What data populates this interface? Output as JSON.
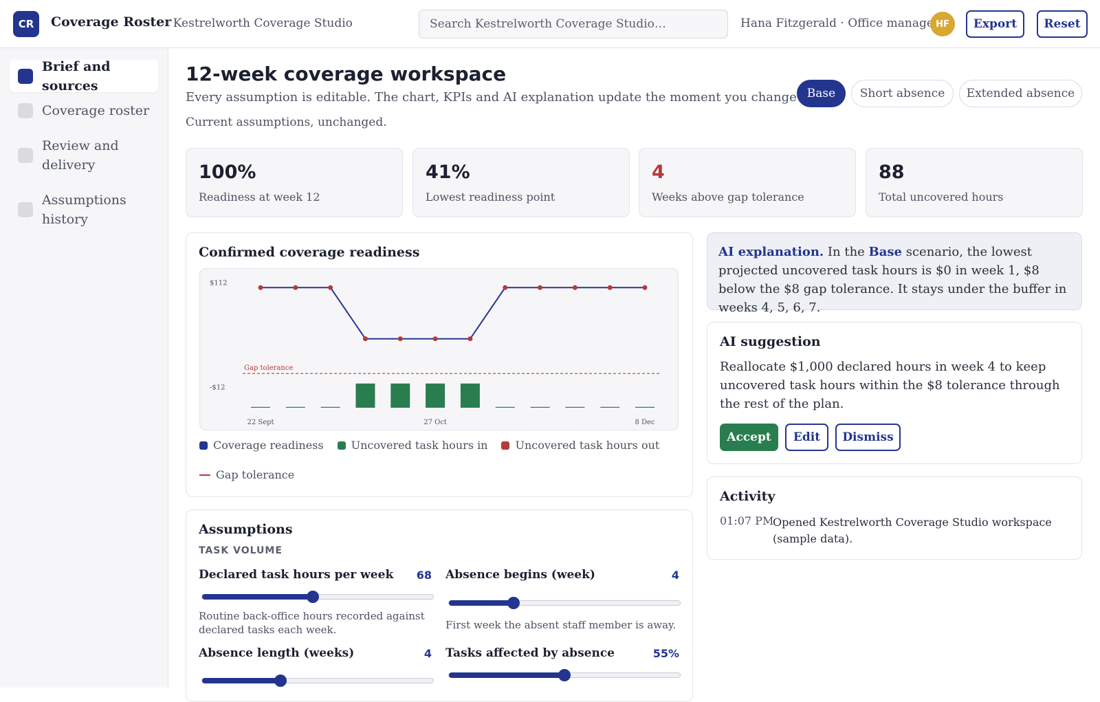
{
  "app": {
    "logo_text": "CR",
    "title": "Coverage Roster",
    "workspace": "· Kestrelworth Coverage Studio"
  },
  "search": {
    "placeholder": "Search Kestrelworth Coverage Studio…"
  },
  "user": {
    "name": "Hana Fitzgerald · Office manager",
    "initials": "HF"
  },
  "toolbar": {
    "export_label": "Export",
    "reset_label": "Reset"
  },
  "sidebar": {
    "items": [
      {
        "label": "Brief and sources",
        "active": true
      },
      {
        "label": "Coverage roster",
        "active": false
      },
      {
        "label": "Review and delivery",
        "active": false
      },
      {
        "label": "Assumptions history",
        "active": false
      }
    ]
  },
  "page": {
    "title": "12-week coverage workspace",
    "subtitle": "Every assumption is editable. The chart, KPIs and AI explanation update the moment you change one.",
    "status": "Current assumptions, unchanged."
  },
  "scenarios": [
    {
      "label": "Base",
      "active": true
    },
    {
      "label": "Short absence",
      "active": false
    },
    {
      "label": "Extended absence",
      "active": false
    }
  ],
  "kpis": [
    {
      "value": "100%",
      "label": "Readiness at week 12",
      "alert": false
    },
    {
      "value": "41%",
      "label": "Lowest readiness point",
      "alert": true
    },
    {
      "value": "4",
      "label": "Weeks above gap tolerance",
      "alert": true
    },
    {
      "value": "88",
      "label": "Total uncovered hours",
      "alert": false
    }
  ],
  "chart_card": {
    "title": "Confirmed coverage readiness"
  },
  "chart_data": {
    "type": "line",
    "title": "Confirmed coverage readiness",
    "x_ticks": [
      "22 Sept",
      "27 Oct",
      "8 Dec"
    ],
    "y_ticks": [
      "$112",
      "-$12"
    ],
    "ylim": [
      -40,
      120
    ],
    "weeks": [
      1,
      2,
      3,
      4,
      5,
      6,
      7,
      8,
      9,
      10,
      11,
      12
    ],
    "series": [
      {
        "name": "Coverage readiness",
        "type": "line",
        "color": "#2b3590",
        "marker_color": "#b53a3a",
        "values": [
          112,
          112,
          112,
          48,
          48,
          48,
          48,
          112,
          112,
          112,
          112,
          112
        ]
      },
      {
        "name": "Uncovered task hours in",
        "type": "bar",
        "color": "#2a7d4f",
        "values": [
          0,
          0,
          0,
          22,
          22,
          22,
          22,
          0,
          0,
          0,
          0,
          0
        ]
      },
      {
        "name": "Uncovered task hours out",
        "type": "bar",
        "color": "#b53a3a",
        "values": [
          0,
          0,
          0,
          0,
          0,
          0,
          0,
          0,
          0,
          0,
          0,
          0
        ]
      }
    ],
    "gap_tolerance": {
      "label": "Gap tolerance",
      "value": 8,
      "color": "#b53a3a"
    },
    "legend": [
      {
        "name": "Coverage readiness",
        "color": "#23358f",
        "kind": "swatch"
      },
      {
        "name": "Uncovered task hours in",
        "color": "#2a7d4f",
        "kind": "swatch"
      },
      {
        "name": "Uncovered task hours out",
        "color": "#b53a3a",
        "kind": "swatch"
      },
      {
        "name": "Gap tolerance",
        "color": "#b53a3a",
        "kind": "line"
      }
    ],
    "grid": false
  },
  "ai_explanation": {
    "lead": "AI explanation.",
    "t1": " In the ",
    "scenario": "Base",
    "t2": " scenario, the lowest projected uncovered task hours is $0 in week 1, $8 below the $8 gap tolerance. It stays under the buffer in weeks 4, 5, 6, 7."
  },
  "ai_suggestion": {
    "title": "AI suggestion",
    "text": "Reallocate $1,000 declared hours in week 4 to keep uncovered task hours within the $8 tolerance through the rest of the plan.",
    "accept_label": "Accept",
    "edit_label": "Edit",
    "dismiss_label": "Dismiss"
  },
  "activity": {
    "title": "Activity",
    "items": [
      {
        "time": "01:07 PM",
        "text": "Opened Kestrelworth Coverage Studio workspace (sample data)."
      }
    ]
  },
  "assumptions": {
    "title": "Assumptions",
    "section": "TASK VOLUME",
    "sliders": [
      {
        "label": "Declared task hours per week",
        "value": "68",
        "fraction": 0.48,
        "help": "Routine back-office hours recorded against declared tasks each week."
      },
      {
        "label": "Absence begins (week)",
        "value": "4",
        "fraction": 0.28,
        "help": "First week the absent staff member is away."
      },
      {
        "label": "Absence length (weeks)",
        "value": "4",
        "fraction": 0.34,
        "help": ""
      },
      {
        "label": "Tasks affected by absence",
        "value": "55%",
        "fraction": 0.5,
        "help": ""
      }
    ]
  },
  "colors": {
    "brand": "#23358f",
    "success": "#2a7d4f",
    "alert": "#b53a3a",
    "avatar": "#d8a833"
  }
}
